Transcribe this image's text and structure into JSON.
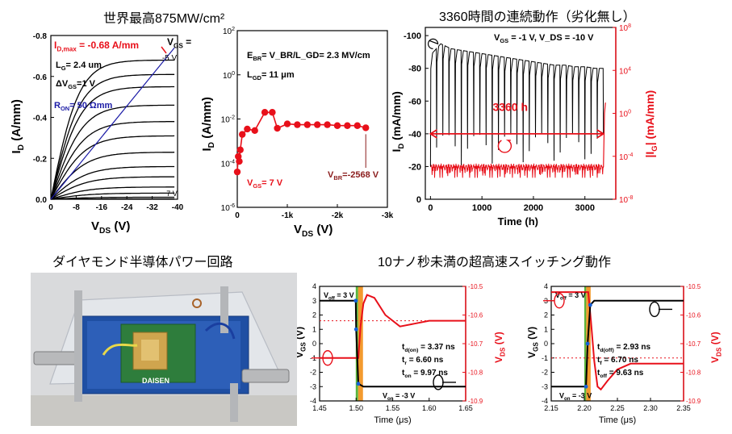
{
  "headings": {
    "top_left": "世界最高875MW/cm²",
    "top_right": "3360時間の連続動作（劣化無し）",
    "bottom_left": "ダイヤモンド半導体パワー回路",
    "bottom_right": "10ナノ秒未満の超高速スイッチング動作"
  },
  "photo": {
    "board_label": "DAISEN"
  },
  "colors": {
    "red": "#e8101a",
    "blue": "#1a1aa6",
    "green": "#5ab43c",
    "orange": "#f39a2e"
  },
  "chart_data": [
    {
      "id": "output-iv",
      "type": "line",
      "xlabel": "V",
      "xlabel_sub": "DS",
      "xunit": " (V)",
      "ylabel": "I",
      "ylabel_sub": "D",
      "yunit": " (A/mm)",
      "xlim": [
        0,
        -40
      ],
      "ylim": [
        0,
        -0.8
      ],
      "x_ticks": [
        "0",
        "-8",
        "-16",
        "-24",
        "-32",
        "-40"
      ],
      "y_ticks": [
        "0.0",
        "-0.2",
        "-0.4",
        "-0.6",
        "-0.8"
      ],
      "imax_label": "I_D,max = -0.68 A/mm",
      "vgs_label": "V_GS =",
      "vgs_top": "-5 V",
      "vgs_bottom": "7 V",
      "lg_label": "L_G= 2.4 um",
      "dvgs_label": "ΔV_GS=1 V",
      "ron_label": "R_ON= 50 Ωmm",
      "series": [
        {
          "vgs": -5,
          "sat": -0.68
        },
        {
          "vgs": -4,
          "sat": -0.61
        },
        {
          "vgs": -3,
          "sat": -0.55
        },
        {
          "vgs": -2,
          "sat": -0.46
        },
        {
          "vgs": -1,
          "sat": -0.38
        },
        {
          "vgs": 0,
          "sat": -0.31
        },
        {
          "vgs": 1,
          "sat": -0.23
        },
        {
          "vgs": 2,
          "sat": -0.16
        },
        {
          "vgs": 3,
          "sat": -0.11
        },
        {
          "vgs": 4,
          "sat": -0.06
        },
        {
          "vgs": 5,
          "sat": -0.03
        },
        {
          "vgs": 6,
          "sat": -0.01
        },
        {
          "vgs": 7,
          "sat": -0.002
        }
      ],
      "ron_line": {
        "x": [
          0,
          -39
        ],
        "y": [
          0,
          -0.74
        ]
      }
    },
    {
      "id": "breakdown",
      "type": "scatter",
      "xlabel": "V",
      "xlabel_sub": "DS",
      "xunit": " (V)",
      "ylabel": "I",
      "ylabel_sub": "D",
      "yunit": " (A/mm)",
      "xlim": [
        0,
        -3000
      ],
      "ylog": [
        -6,
        2
      ],
      "x_ticks": [
        "0",
        "-1k",
        "-2k",
        "-3k"
      ],
      "y_ticks": [
        "10^-6",
        "10^-4",
        "10^-2",
        "10^0",
        "10^2"
      ],
      "ebr_label": "E_BR= V_BR/L_GD= 2.3 MV/cm",
      "lgd_label": "L_GD= 11 μm",
      "vgs_label": "V_GS= 7 V",
      "vbr_label": "V_BR=-2568 V",
      "x": [
        0,
        -20,
        -40,
        -60,
        -100,
        -200,
        -350,
        -550,
        -700,
        -800,
        -1000,
        -1200,
        -1400,
        -1600,
        -1800,
        -2000,
        -2200,
        -2400,
        -2568
      ],
      "y": [
        4e-05,
        0.0002,
        0.00012,
        0.0004,
        0.002,
        0.0035,
        0.003,
        0.02,
        0.02,
        0.0038,
        0.006,
        0.0055,
        0.0055,
        0.0055,
        0.0055,
        0.005,
        0.005,
        0.005,
        0.004
      ]
    },
    {
      "id": "longterm",
      "type": "line",
      "xlabel": "Time (h)",
      "ylabel": "I",
      "ylabel_sub": "D",
      "yunit": " (mA/mm)",
      "y2label": "|I",
      "y2label_sub": "G",
      "y2unit": "| (mA/mm)",
      "xlim": [
        -100,
        3600
      ],
      "ylim": [
        0,
        -105
      ],
      "y2log": [
        -8,
        8
      ],
      "x_ticks": [
        "0",
        "1000",
        "2000",
        "3000"
      ],
      "y_ticks": [
        "0",
        "-20",
        "-40",
        "-60",
        "-80",
        "-100"
      ],
      "y2_ticks": [
        "10^-8",
        "10^-4",
        "10^0",
        "10^4",
        "10^8"
      ],
      "bias_label": "V_GS = -1 V, V_DS = -10 V",
      "duration_label": "3360 h",
      "series": [
        {
          "name": "I_D",
          "x": [
            0,
            200,
            400,
            600,
            800,
            1000,
            1200,
            1400,
            1600,
            1800,
            2000,
            2200,
            2400,
            2600,
            2800,
            3000,
            3200,
            3360
          ],
          "y": [
            -88,
            -95,
            -92,
            -91,
            -90,
            -89,
            -88,
            -87,
            -86,
            -85,
            -84,
            -83,
            -82,
            -82,
            -81,
            -81,
            -80,
            -80
          ]
        },
        {
          "name": "|I_G|",
          "x": [
            0,
            500,
            1000,
            1500,
            2000,
            2500,
            3000,
            3360
          ],
          "y": [
            1e-05,
            1.5e-05,
            1e-05,
            2e-05,
            1e-05,
            1.5e-05,
            1e-05,
            2e-05
          ]
        }
      ]
    },
    {
      "id": "turn-on",
      "type": "line",
      "xlabel": "Time (μs)",
      "ylabel": "V",
      "ylabel_sub": "GS",
      "yunit": " (V)",
      "y2label": "V",
      "y2label_sub": "DS",
      "y2unit": " (V)",
      "xlim": [
        1.45,
        1.65
      ],
      "ylim": [
        -4,
        4
      ],
      "y2lim": [
        -10.9,
        -10.5
      ],
      "x_ticks": [
        "1.45",
        "1.50",
        "1.55",
        "1.60",
        "1.65"
      ],
      "y_ticks": [
        "4",
        "3",
        "2",
        "1",
        "0",
        "-1",
        "-2",
        "-3",
        "-4"
      ],
      "y2_ticks": [
        "-10.5",
        "-10.6",
        "-10.7",
        "-10.8",
        "-10.9"
      ],
      "voff_label": "V_off = 3 V",
      "von_label": "V_on = -3 V",
      "td_label": "t_d(on) = 3.37 ns",
      "tr_label": "t_r = 6.60 ns",
      "tt_label": "t_on = 9.97 ns",
      "vgs": {
        "x": [
          1.45,
          1.4995,
          1.5,
          1.503,
          1.51,
          1.65
        ],
        "y": [
          3,
          3,
          1,
          -2.8,
          -3,
          -3
        ]
      },
      "vds": {
        "x": [
          1.45,
          1.503,
          1.506,
          1.51,
          1.515,
          1.525,
          1.54,
          1.56,
          1.58,
          1.6,
          1.63,
          1.65
        ],
        "y": [
          -10.75,
          -10.75,
          -10.64,
          -10.56,
          -10.53,
          -10.54,
          -10.6,
          -10.64,
          -10.63,
          -10.62,
          -10.62,
          -10.62
        ]
      }
    },
    {
      "id": "turn-off",
      "type": "line",
      "xlabel": "Time (μs)",
      "ylabel": "V",
      "ylabel_sub": "GS",
      "yunit": " (V)",
      "y2label": "V",
      "y2label_sub": "DS",
      "y2unit": " (V)",
      "xlim": [
        2.15,
        2.35
      ],
      "ylim": [
        -4,
        4
      ],
      "y2lim": [
        -10.9,
        -10.5
      ],
      "x_ticks": [
        "2.15",
        "2.20",
        "2.25",
        "2.30",
        "2.35"
      ],
      "y_ticks": [
        "4",
        "3",
        "2",
        "1",
        "0",
        "-1",
        "-2",
        "-3",
        "-4"
      ],
      "y2_ticks": [
        "-10.5",
        "-10.6",
        "-10.7",
        "-10.8",
        "-10.9"
      ],
      "voff_label": "V_off = 3 V",
      "von_label": "V_on = -3 V",
      "td_label": "t_d(off) = 2.93 ns",
      "tr_label": "t_f = 6.70 ns",
      "tt_label": "t_off = 9.63 ns",
      "vgs": {
        "x": [
          2.15,
          2.2025,
          2.205,
          2.209,
          2.215,
          2.35
        ],
        "y": [
          -3,
          -3,
          0,
          2.7,
          3,
          3
        ]
      },
      "vds": {
        "x": [
          2.15,
          2.206,
          2.21,
          2.215,
          2.22,
          2.225,
          2.235,
          2.25,
          2.27,
          2.29,
          2.32,
          2.35
        ],
        "y": [
          -10.52,
          -10.52,
          -10.62,
          -10.76,
          -10.85,
          -10.86,
          -10.83,
          -10.79,
          -10.77,
          -10.77,
          -10.77,
          -10.77
        ]
      }
    }
  ]
}
